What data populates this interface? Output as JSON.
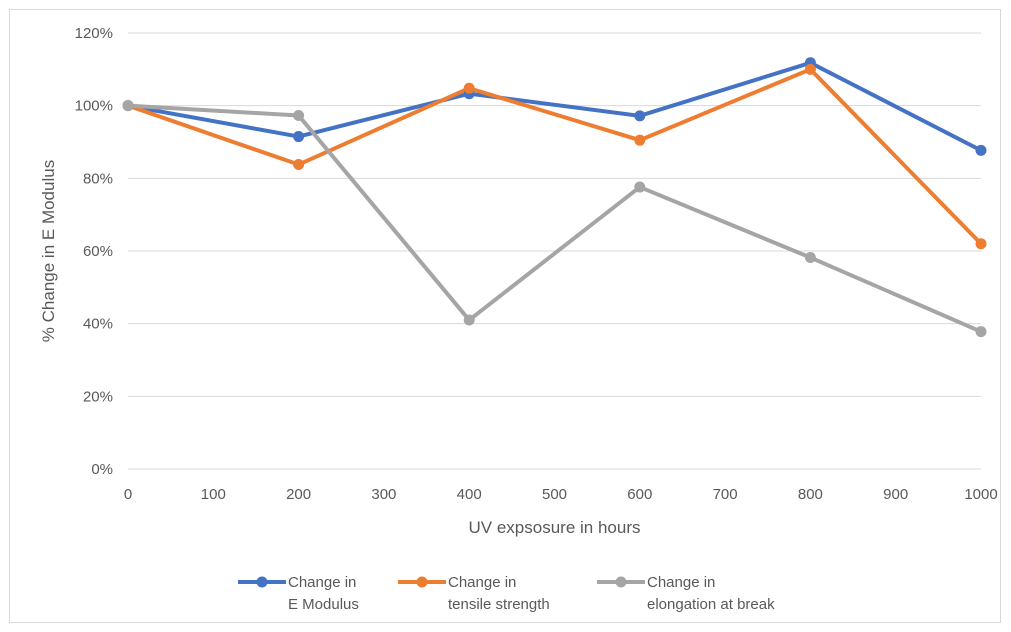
{
  "chart_data": {
    "type": "line",
    "title": "",
    "xlabel": "UV expsosure in hours",
    "ylabel": "% Change in E Modulus",
    "x": [
      0,
      200,
      400,
      600,
      800,
      1000
    ],
    "xlim": [
      0,
      1000
    ],
    "xticks": [
      "0",
      "100",
      "200",
      "300",
      "400",
      "500",
      "600",
      "700",
      "800",
      "900",
      "1000"
    ],
    "ylim": [
      0,
      1.2
    ],
    "yticks": [
      "0%",
      "20%",
      "40%",
      "60%",
      "80%",
      "100%",
      "120%"
    ],
    "grid": "horizontal",
    "legend_position": "bottom",
    "series": [
      {
        "name_lines": [
          "Change in",
          "E Modulus"
        ],
        "color": "#4472C4",
        "values": [
          1.0,
          0.915,
          1.033,
          0.972,
          1.118,
          0.877
        ]
      },
      {
        "name_lines": [
          "Change in",
          "tensile strength"
        ],
        "color": "#ED7D31",
        "values": [
          1.0,
          0.838,
          1.048,
          0.905,
          1.1,
          0.62
        ]
      },
      {
        "name_lines": [
          "Change in",
          "elongation at break"
        ],
        "color": "#A5A5A5",
        "values": [
          1.0,
          0.973,
          0.41,
          0.776,
          0.582,
          0.378
        ]
      }
    ]
  }
}
